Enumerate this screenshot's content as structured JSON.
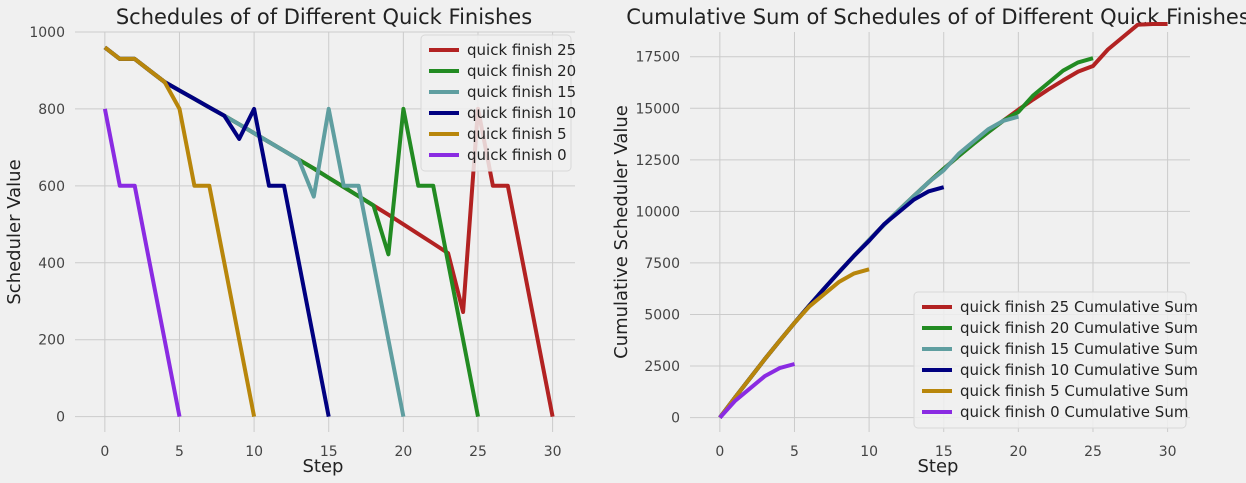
{
  "chart_data": [
    {
      "type": "line",
      "title": "Schedules of of Different Quick Finishes",
      "xlabel": "Step",
      "ylabel": "Scheduler Value",
      "xlim": [
        -2,
        31.5
      ],
      "ylim": [
        -40,
        1000
      ],
      "xticks": [
        0,
        5,
        10,
        15,
        20,
        25,
        30
      ],
      "yticks": [
        0,
        200,
        400,
        600,
        800,
        1000
      ],
      "grid": true,
      "legend_position": "top-right",
      "series": [
        {
          "name": "quick finish 25",
          "color": "#b22222",
          "x": [
            0,
            1,
            2,
            3,
            4,
            5,
            6,
            7,
            8,
            9,
            10,
            11,
            12,
            13,
            14,
            15,
            16,
            17,
            18,
            19,
            20,
            21,
            22,
            23,
            24,
            25,
            26,
            27,
            28,
            29,
            30
          ],
          "values": [
            960,
            930,
            930,
            900,
            870,
            848,
            826,
            804,
            782,
            760,
            737,
            714,
            691,
            668,
            645,
            621,
            597,
            573,
            549,
            525,
            500,
            475,
            450,
            425,
            272,
            800,
            600,
            600,
            400,
            200,
            0
          ]
        },
        {
          "name": "quick finish 20",
          "color": "#228b22",
          "x": [
            0,
            1,
            2,
            3,
            4,
            5,
            6,
            7,
            8,
            9,
            10,
            11,
            12,
            13,
            14,
            15,
            16,
            17,
            18,
            19,
            20,
            21,
            22,
            23,
            24,
            25
          ],
          "values": [
            960,
            930,
            930,
            900,
            870,
            848,
            826,
            804,
            782,
            760,
            737,
            714,
            691,
            668,
            645,
            621,
            597,
            573,
            549,
            422,
            800,
            600,
            600,
            400,
            200,
            0
          ]
        },
        {
          "name": "quick finish 15",
          "color": "#5f9ea0",
          "x": [
            0,
            1,
            2,
            3,
            4,
            5,
            6,
            7,
            8,
            9,
            10,
            11,
            12,
            13,
            14,
            15,
            16,
            17,
            18,
            19,
            20
          ],
          "values": [
            960,
            930,
            930,
            900,
            870,
            848,
            826,
            804,
            782,
            760,
            737,
            714,
            691,
            668,
            572,
            800,
            600,
            600,
            400,
            200,
            0
          ]
        },
        {
          "name": "quick finish 10",
          "color": "#000080",
          "x": [
            0,
            1,
            2,
            3,
            4,
            5,
            6,
            7,
            8,
            9,
            10,
            11,
            12,
            13,
            14,
            15
          ],
          "values": [
            960,
            930,
            930,
            900,
            870,
            848,
            826,
            804,
            782,
            722,
            800,
            600,
            600,
            400,
            200,
            0
          ]
        },
        {
          "name": "quick finish 5",
          "color": "#b8860b",
          "x": [
            0,
            1,
            2,
            3,
            4,
            5,
            6,
            7,
            8,
            9,
            10
          ],
          "values": [
            960,
            930,
            930,
            900,
            870,
            800,
            600,
            600,
            400,
            200,
            0
          ]
        },
        {
          "name": "quick finish 0",
          "color": "#8a2be2",
          "x": [
            0,
            1,
            2,
            3,
            4,
            5
          ],
          "values": [
            800,
            600,
            600,
            400,
            200,
            0
          ]
        }
      ]
    },
    {
      "type": "line",
      "title": "Cumulative Sum of Schedules of of Different Quick Finishes",
      "xlabel": "Step",
      "ylabel": "Cumulative Scheduler Value",
      "xlim": [
        -2,
        31.5
      ],
      "ylim": [
        -700,
        18700
      ],
      "xticks": [
        0,
        5,
        10,
        15,
        20,
        25,
        30
      ],
      "yticks": [
        0,
        2500,
        5000,
        7500,
        10000,
        12500,
        15000,
        17500
      ],
      "grid": true,
      "legend_position": "bottom-right",
      "series": [
        {
          "name": "quick finish 25 Cumulative Sum",
          "color": "#b22222",
          "x": [
            0,
            1,
            2,
            3,
            4,
            5,
            6,
            7,
            8,
            9,
            10,
            11,
            12,
            13,
            14,
            15,
            16,
            17,
            18,
            19,
            20,
            21,
            22,
            23,
            24,
            25,
            26,
            27,
            28,
            29,
            30
          ],
          "values": [
            0,
            960,
            1890,
            2820,
            3720,
            4590,
            5438,
            6264,
            7068,
            7850,
            8610,
            9347,
            10061,
            10752,
            11420,
            12065,
            12686,
            13283,
            13856,
            14405,
            14930,
            15430,
            15905,
            16355,
            16780,
            17052,
            17852,
            18452,
            19052,
            19452,
            19652
          ]
        },
        {
          "name": "quick finish 20 Cumulative Sum",
          "color": "#228b22",
          "x": [
            0,
            1,
            2,
            3,
            4,
            5,
            6,
            7,
            8,
            9,
            10,
            11,
            12,
            13,
            14,
            15,
            16,
            17,
            18,
            19,
            20,
            21,
            22,
            23,
            24,
            25
          ],
          "values": [
            0,
            960,
            1890,
            2820,
            3720,
            4590,
            5438,
            6264,
            7068,
            7850,
            8610,
            9347,
            10061,
            10752,
            11420,
            12065,
            12686,
            13283,
            13856,
            14405,
            14827,
            15627,
            16227,
            16827,
            17227,
            17427
          ]
        },
        {
          "name": "quick finish 15 Cumulative Sum",
          "color": "#5f9ea0",
          "x": [
            0,
            1,
            2,
            3,
            4,
            5,
            6,
            7,
            8,
            9,
            10,
            11,
            12,
            13,
            14,
            15,
            16,
            17,
            18,
            19,
            20
          ],
          "values": [
            0,
            960,
            1890,
            2820,
            3720,
            4590,
            5438,
            6264,
            7068,
            7850,
            8610,
            9347,
            10061,
            10752,
            11420,
            11992,
            12792,
            13392,
            13992,
            14392,
            14592
          ]
        },
        {
          "name": "quick finish 10 Cumulative Sum",
          "color": "#000080",
          "x": [
            0,
            1,
            2,
            3,
            4,
            5,
            6,
            7,
            8,
            9,
            10,
            11,
            12,
            13,
            14,
            15
          ],
          "values": [
            0,
            960,
            1890,
            2820,
            3720,
            4590,
            5438,
            6264,
            7068,
            7850,
            8572,
            9372,
            9972,
            10572,
            10972,
            11172
          ]
        },
        {
          "name": "quick finish 5 Cumulative Sum",
          "color": "#b8860b",
          "x": [
            0,
            1,
            2,
            3,
            4,
            5,
            6,
            7,
            8,
            9,
            10
          ],
          "values": [
            0,
            960,
            1890,
            2820,
            3720,
            4590,
            5390,
            5990,
            6590,
            6990,
            7190
          ]
        },
        {
          "name": "quick finish 0 Cumulative Sum",
          "color": "#8a2be2",
          "x": [
            0,
            1,
            2,
            3,
            4,
            5
          ],
          "values": [
            0,
            800,
            1400,
            2000,
            2400,
            2600
          ]
        }
      ]
    }
  ]
}
